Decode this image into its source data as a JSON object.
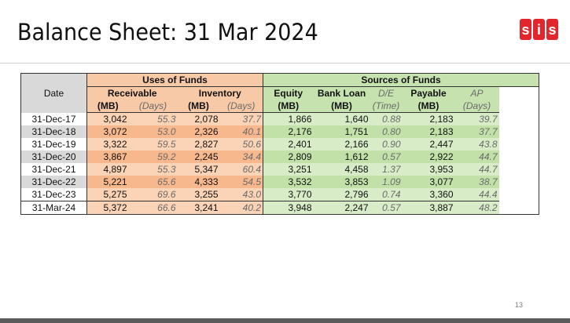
{
  "slide": {
    "title": "Balance Sheet: 31 Mar 2024",
    "page_number": "13",
    "logo_text": "sis"
  },
  "table": {
    "group_headers": {
      "uses": "Uses of Funds",
      "sources": "Sources of Funds"
    },
    "date_header": "Date",
    "column_titles": {
      "receivable": "Receivable",
      "inventory": "Inventory",
      "equity": "Equity",
      "bank_loan": "Bank Loan",
      "de": "D/E",
      "payable": "Payable",
      "ap": "AP"
    },
    "column_units": {
      "receivable_mb": "(MB)",
      "receivable_days": "(Days)",
      "inventory_mb": "(MB)",
      "inventory_days": "(Days)",
      "equity_mb": "(MB)",
      "bank_loan_mb": "(MB)",
      "de_time": "(Time)",
      "payable_mb": "(MB)",
      "ap_days": "(Days)"
    },
    "rows": [
      {
        "date": "31-Dec-17",
        "rec": "3,042",
        "rec_days": "55.3",
        "inv": "2,078",
        "inv_days": "37.7",
        "equity": "1,866",
        "loan": "1,640",
        "de": "0.88",
        "payable": "2,183",
        "ap": "39.7"
      },
      {
        "date": "31-Dec-18",
        "rec": "3,072",
        "rec_days": "53.0",
        "inv": "2,326",
        "inv_days": "40.1",
        "equity": "2,176",
        "loan": "1,751",
        "de": "0.80",
        "payable": "2,183",
        "ap": "37.7"
      },
      {
        "date": "31-Dec-19",
        "rec": "3,322",
        "rec_days": "59.5",
        "inv": "2,827",
        "inv_days": "50.6",
        "equity": "2,401",
        "loan": "2,166",
        "de": "0.90",
        "payable": "2,447",
        "ap": "43.8"
      },
      {
        "date": "31-Dec-20",
        "rec": "3,867",
        "rec_days": "59.2",
        "inv": "2,245",
        "inv_days": "34.4",
        "equity": "2,809",
        "loan": "1,612",
        "de": "0.57",
        "payable": "2,922",
        "ap": "44.7"
      },
      {
        "date": "31-Dec-21",
        "rec": "4,897",
        "rec_days": "55.3",
        "inv": "5,347",
        "inv_days": "60.4",
        "equity": "3,251",
        "loan": "4,458",
        "de": "1.37",
        "payable": "3,953",
        "ap": "44.7"
      },
      {
        "date": "31-Dec-22",
        "rec": "5,221",
        "rec_days": "65.6",
        "inv": "4,333",
        "inv_days": "54.5",
        "equity": "3,532",
        "loan": "3,853",
        "de": "1.09",
        "payable": "3,077",
        "ap": "38.7"
      },
      {
        "date": "31-Dec-23",
        "rec": "5,275",
        "rec_days": "69.6",
        "inv": "3,255",
        "inv_days": "43.0",
        "equity": "3,770",
        "loan": "2,796",
        "de": "0.74",
        "payable": "3,360",
        "ap": "44.4"
      },
      {
        "date": "31-Mar-24",
        "rec": "5,372",
        "rec_days": "66.6",
        "inv": "3,241",
        "inv_days": "40.2",
        "equity": "3,948",
        "loan": "2,247",
        "de": "0.57",
        "payable": "3,887",
        "ap": "48.2"
      }
    ]
  },
  "colors": {
    "uses_light": "#fbd3b6",
    "uses_dark": "#f7b88d",
    "sources_light": "#d8ecc8",
    "sources_dark": "#c2e1a9",
    "date_alt": "#d9d9d9",
    "logo_red": "#e1262d"
  }
}
